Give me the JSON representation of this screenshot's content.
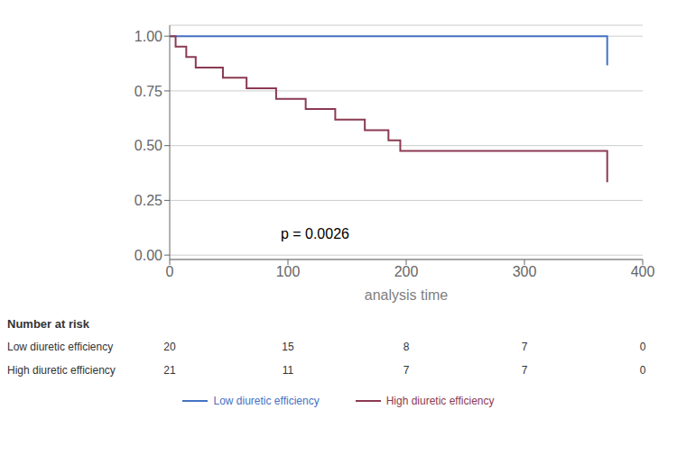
{
  "chart_data": {
    "type": "step",
    "xlabel": "analysis time",
    "xlim": [
      0,
      400
    ],
    "ylim": [
      -0.02,
      1.05
    ],
    "xticks": [
      0,
      100,
      200,
      300,
      400
    ],
    "yticks": [
      {
        "value": 0.0,
        "label": "0.00"
      },
      {
        "value": 0.25,
        "label": "0.25"
      },
      {
        "value": 0.5,
        "label": "0.50"
      },
      {
        "value": 0.75,
        "label": "0.75"
      },
      {
        "value": 1.0,
        "label": "1.00"
      }
    ],
    "grid": true,
    "legend": "bottom",
    "series": [
      {
        "name": "Low diuretic efficiency",
        "color": "#4472c4",
        "x": [
          0,
          285,
          370
        ],
        "values": [
          1.0,
          1.0,
          0.867
        ]
      },
      {
        "name": "High diuretic efficiency",
        "color": "#8b3a52",
        "x": [
          0,
          5,
          14,
          22,
          45,
          65,
          90,
          115,
          140,
          165,
          185,
          195,
          350,
          370
        ],
        "values": [
          1.0,
          0.952,
          0.905,
          0.857,
          0.81,
          0.762,
          0.714,
          0.667,
          0.619,
          0.571,
          0.524,
          0.476,
          0.476,
          0.333
        ]
      }
    ],
    "annotations": [
      {
        "text": "p = 0.0026",
        "x": 90,
        "y": 0.1
      }
    ],
    "risk_table": {
      "title": "Number at risk",
      "x": [
        0,
        100,
        200,
        300,
        400
      ],
      "rows": [
        {
          "name": "Low diuretic efficiency",
          "values": [
            20,
            15,
            8,
            7,
            0
          ]
        },
        {
          "name": "High diuretic efficiency",
          "values": [
            21,
            11,
            7,
            7,
            0
          ]
        }
      ]
    }
  }
}
